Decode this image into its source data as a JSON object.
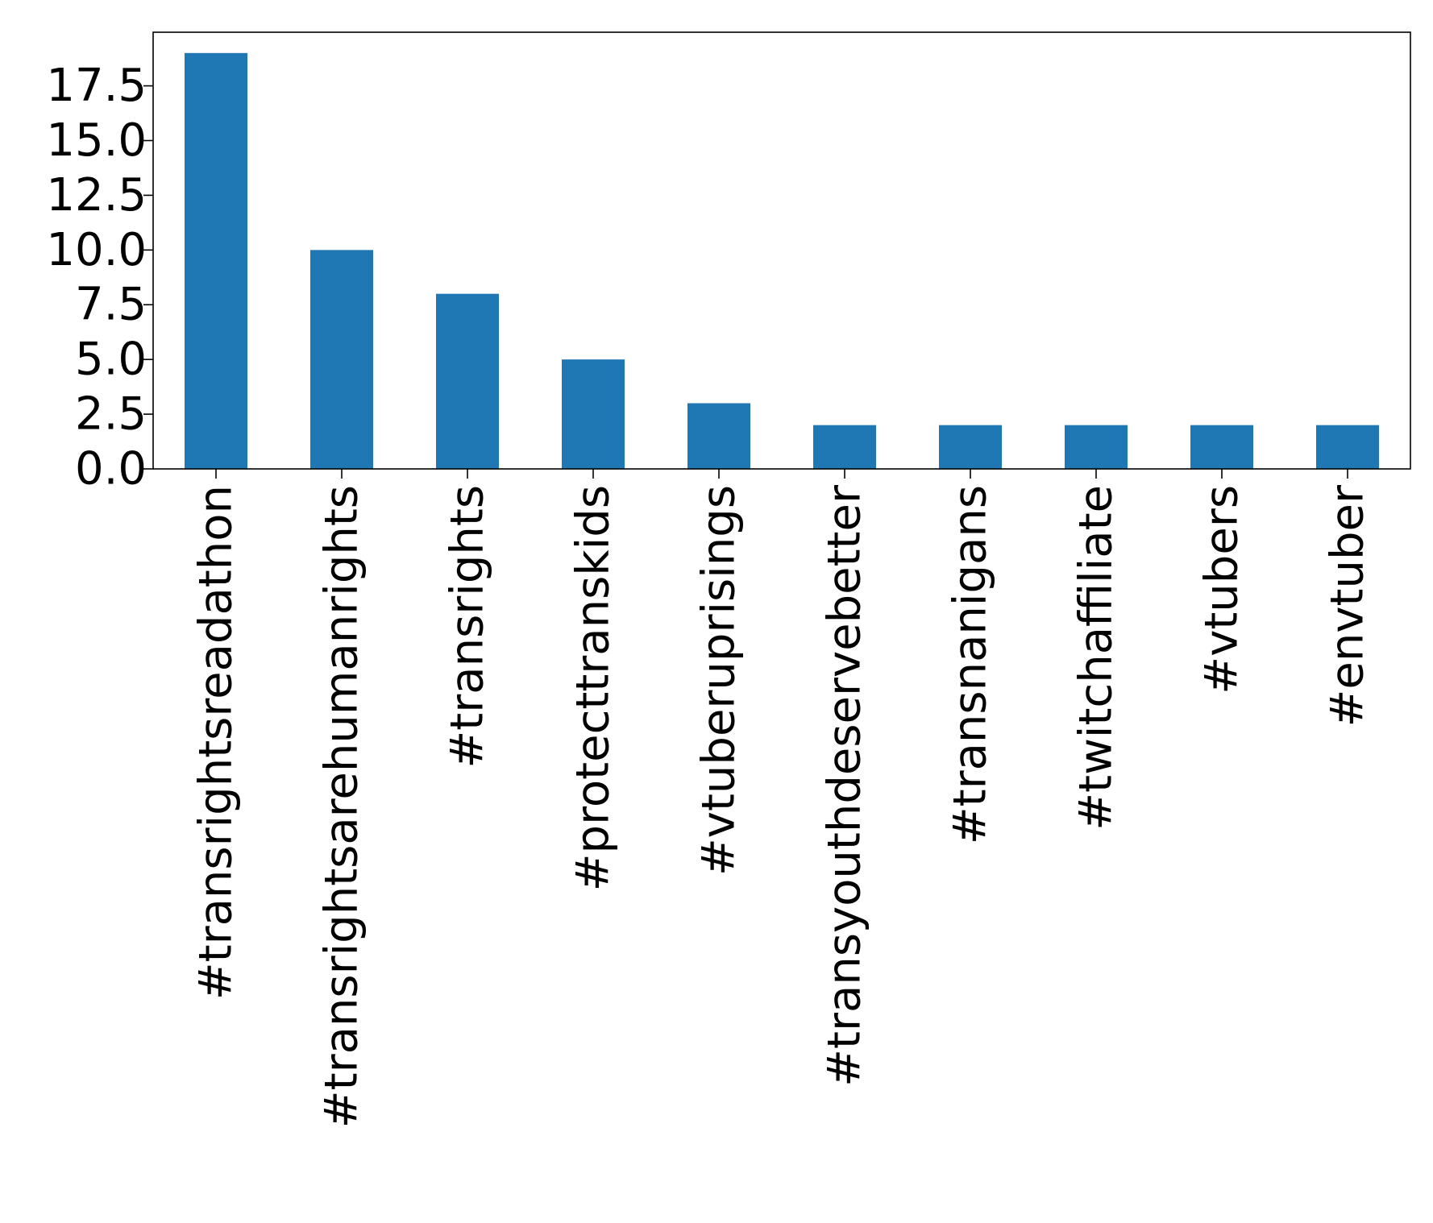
{
  "chart_data": {
    "type": "bar",
    "categories": [
      "#transrightsreadathon",
      "#transrightsarehumanrights",
      "#transrights",
      "#protecttranskids",
      "#vtuberuprisings",
      "#transyouthdeservebetter",
      "#transnanigans",
      "#twitchaffiliate",
      "#vtubers",
      "#envtuber"
    ],
    "values": [
      19,
      10,
      8,
      5,
      3,
      2,
      2,
      2,
      2,
      2
    ],
    "yticks": [
      "0.0",
      "2.5",
      "5.0",
      "7.5",
      "10.0",
      "12.5",
      "15.0",
      "17.5"
    ],
    "ylim": [
      0,
      19.95
    ],
    "bar_color": "#1f77b4",
    "grid": false,
    "legend": "none"
  }
}
